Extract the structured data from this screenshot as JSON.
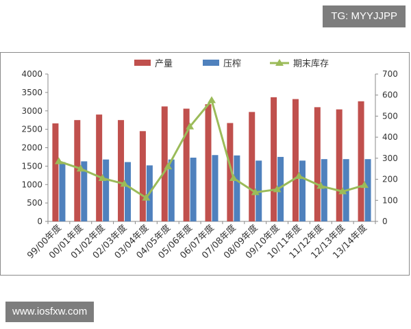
{
  "watermarks": {
    "top": "TG: MYYJJPP",
    "bottom": "www.iosfxw.com"
  },
  "colors": {
    "production": "#c0504d",
    "crushing": "#4f81bd",
    "stock": "#9bbb59",
    "axis": "#8a8a8a",
    "text": "#333333"
  },
  "chart_data": {
    "type": "bar",
    "categories": [
      "99/00年度",
      "00/01年度",
      "01/02年度",
      "02/03年度",
      "03/04年度",
      "04/05年度",
      "05/06年度",
      "06/07年度",
      "07/08年度",
      "08/09年度",
      "09/10年度",
      "10/11年度",
      "11/12年度",
      "12/13年度",
      "13/14年度"
    ],
    "series": [
      {
        "name": "产量",
        "type": "bar",
        "axis": "left",
        "color": "#c0504d",
        "values": [
          2660,
          2750,
          2900,
          2750,
          2450,
          3120,
          3060,
          3180,
          2670,
          2970,
          3370,
          3320,
          3100,
          3040,
          3260
        ]
      },
      {
        "name": "压榨",
        "type": "bar",
        "axis": "left",
        "color": "#4f81bd",
        "values": [
          1610,
          1630,
          1680,
          1610,
          1520,
          1680,
          1730,
          1800,
          1790,
          1650,
          1750,
          1650,
          1690,
          1690,
          1690
        ]
      },
      {
        "name": "期末库存",
        "type": "line",
        "axis": "right",
        "color": "#9bbb59",
        "values": [
          285,
          250,
          205,
          178,
          112,
          260,
          450,
          575,
          205,
          138,
          152,
          215,
          168,
          142,
          172
        ]
      }
    ],
    "ylim_left": [
      0,
      4000
    ],
    "yticks_left": [
      "0",
      "500",
      "1000",
      "1500",
      "2000",
      "2500",
      "3000",
      "3500",
      "4000"
    ],
    "ylim_right": [
      0,
      700
    ],
    "yticks_right": [
      "0",
      "100",
      "200",
      "300",
      "400",
      "500",
      "600",
      "700"
    ],
    "legend_position": "top",
    "grid": false
  }
}
